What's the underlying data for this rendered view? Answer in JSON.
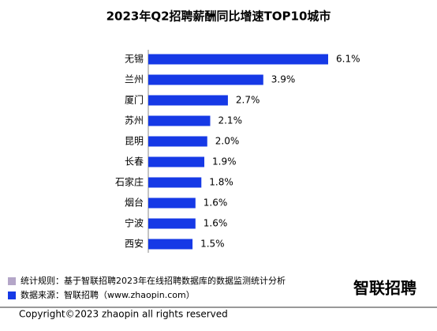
{
  "chart_data": {
    "type": "bar",
    "orientation": "horizontal",
    "title": "2023年Q2招聘薪酬同比增速TOP10城市",
    "categories": [
      "无锡",
      "兰州",
      "厦门",
      "苏州",
      "昆明",
      "长春",
      "石家庄",
      "烟台",
      "宁波",
      "西安"
    ],
    "values": [
      6.1,
      3.9,
      2.7,
      2.1,
      2.0,
      1.9,
      1.8,
      1.6,
      1.6,
      1.5
    ],
    "value_labels": [
      "6.1%",
      "3.9%",
      "2.7%",
      "2.1%",
      "2.0%",
      "1.9%",
      "1.8%",
      "1.6%",
      "1.6%",
      "1.5%"
    ],
    "color": "#1639e6"
  },
  "notes": [
    {
      "text": "统计规则：基于智联招聘2023年在线招聘数据库的数据监测统计分析",
      "color": "#b4a6c8"
    },
    {
      "text": "数据来源：智联招聘（www.zhaopin.com）",
      "color": "#1639e6"
    }
  ],
  "logo": "智联招聘",
  "copyright": "Copyright©2023 zhaopin all rights reserved"
}
